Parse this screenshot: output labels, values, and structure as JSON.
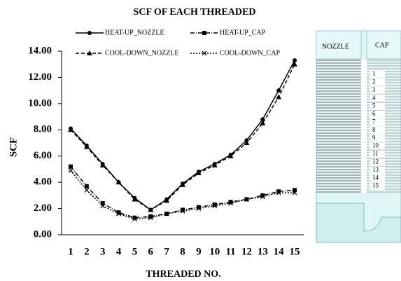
{
  "chart_data": {
    "type": "line",
    "title": "SCF OF EACH THREADED",
    "x_label": "THREADED NO.",
    "y_label": "SCF",
    "categories": [
      "1",
      "2",
      "3",
      "4",
      "5",
      "6",
      "7",
      "8",
      "9",
      "10",
      "11",
      "12",
      "13",
      "14",
      "15"
    ],
    "ylim": [
      0,
      14
    ],
    "yticks": [
      {
        "value": 0,
        "label": "0.00"
      },
      {
        "value": 2,
        "label": "2.00"
      },
      {
        "value": 4,
        "label": "4.00"
      },
      {
        "value": 6,
        "label": "6.00"
      },
      {
        "value": 8,
        "label": "8.00"
      },
      {
        "value": 10,
        "label": "10.00"
      },
      {
        "value": 12,
        "label": "12.00"
      },
      {
        "value": 14,
        "label": "14.00"
      }
    ],
    "series": [
      {
        "name": "HEAT-UP_NOZZLE",
        "color": "#000000",
        "marker": "circle",
        "dash": "solid",
        "values": [
          8.1,
          6.8,
          5.4,
          4.0,
          2.8,
          1.9,
          2.7,
          3.9,
          4.8,
          5.4,
          6.1,
          7.2,
          8.8,
          11.0,
          13.3
        ]
      },
      {
        "name": "HEAT-UP_CAP",
        "color": "#000000",
        "marker": "square",
        "dash": "dashdot",
        "values": [
          5.2,
          3.7,
          2.4,
          1.7,
          1.3,
          1.4,
          1.6,
          1.9,
          2.1,
          2.3,
          2.5,
          2.7,
          3.0,
          3.3,
          3.4
        ]
      },
      {
        "name": "COOL-DOWN_NOZZLE",
        "color": "#000000",
        "marker": "triangle",
        "dash": "dashed",
        "values": [
          8.0,
          6.7,
          5.3,
          4.0,
          2.7,
          1.9,
          2.6,
          3.8,
          4.7,
          5.3,
          6.0,
          7.0,
          8.5,
          10.5,
          13.0
        ]
      },
      {
        "name": "COOL-DOWN_CAP",
        "color": "#000000",
        "marker": "cross",
        "dash": "dotted",
        "values": [
          4.9,
          3.4,
          2.2,
          1.6,
          1.2,
          1.3,
          1.6,
          1.8,
          2.0,
          2.2,
          2.4,
          2.7,
          2.9,
          3.2,
          3.2
        ]
      }
    ]
  },
  "diagram": {
    "nozzle_label": "NOZZLE",
    "cap_label": "CAP",
    "thread_numbers": [
      "1",
      "2",
      "3",
      "4",
      "5",
      "6",
      "7",
      "8",
      "9",
      "10",
      "11",
      "12",
      "13",
      "14",
      "15"
    ]
  }
}
